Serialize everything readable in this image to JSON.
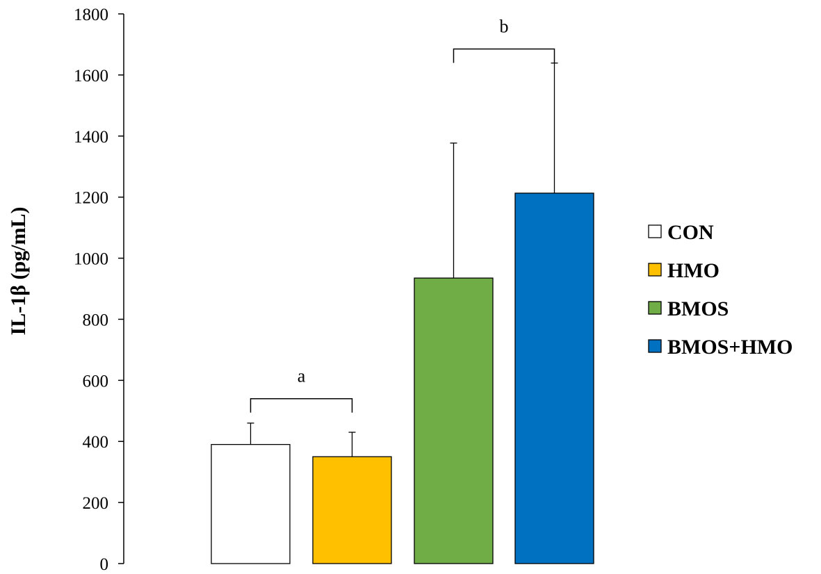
{
  "chart_data": {
    "type": "bar",
    "title": "",
    "xlabel": "",
    "ylabel": "IL-1β (pg/mL)",
    "ylim": [
      0,
      1800
    ],
    "yticks": [
      0,
      200,
      400,
      600,
      800,
      1000,
      1200,
      1400,
      1600,
      1800
    ],
    "grid": false,
    "legend_position": "right",
    "series": [
      {
        "name": "CON",
        "value": 390,
        "error": 70,
        "color": "#ffffff"
      },
      {
        "name": "HMO",
        "value": 350,
        "error": 80,
        "color": "#ffc000"
      },
      {
        "name": "BMOS",
        "value": 935,
        "error": 442,
        "color": "#70ad47"
      },
      {
        "name": "BMOS+HMO",
        "value": 1213,
        "error": 426,
        "color": "#0070c0"
      }
    ],
    "annotations": [
      {
        "text": "a",
        "groups": [
          "CON",
          "HMO"
        ],
        "level": 540
      },
      {
        "text": "b",
        "groups": [
          "BMOS",
          "BMOS+HMO"
        ],
        "level": 1685
      }
    ]
  }
}
